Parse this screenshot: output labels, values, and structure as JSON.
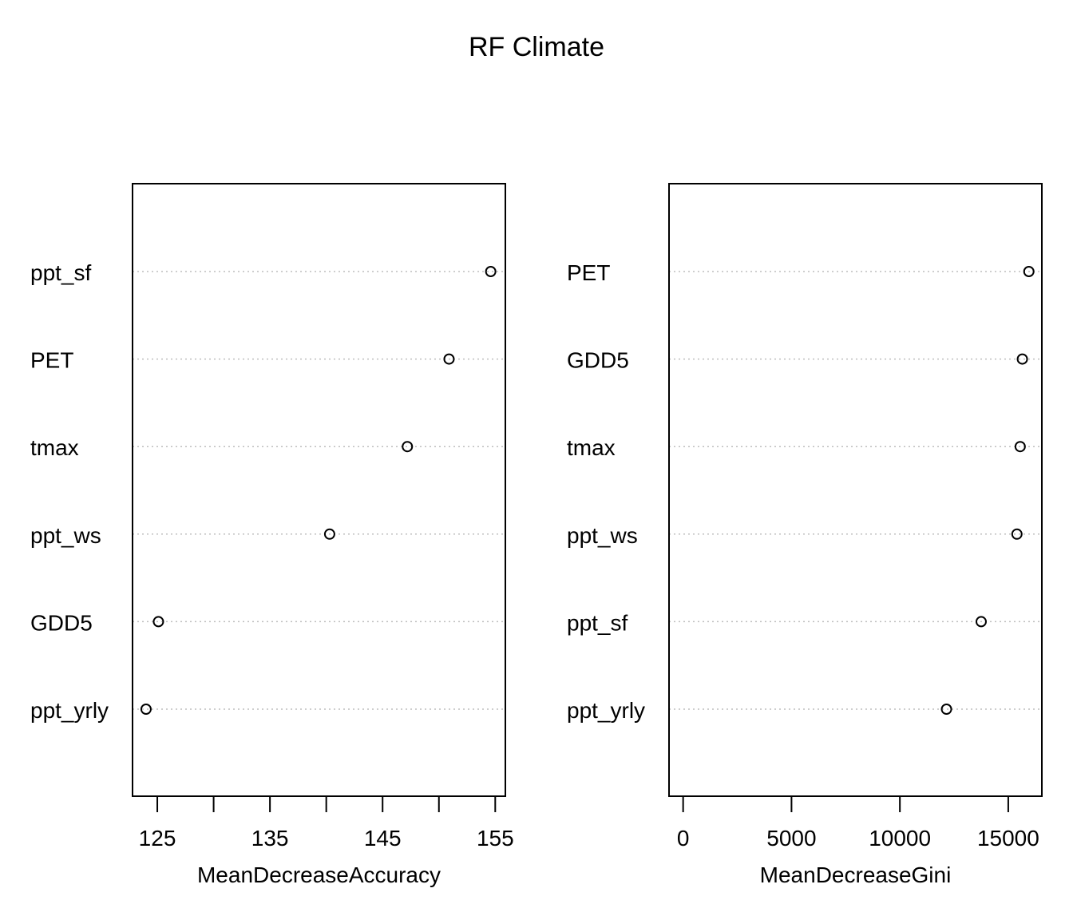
{
  "title": "RF Climate",
  "chart_data": [
    {
      "type": "scatter",
      "subtype": "dotchart",
      "xlabel": "MeanDecreaseAccuracy",
      "ylabel": "",
      "xlim": [
        122.8,
        155.9
      ],
      "xticks": [
        125,
        130,
        135,
        140,
        145,
        150,
        155
      ],
      "xticklabels": [
        "125",
        "",
        "135",
        "",
        "145",
        "",
        "155"
      ],
      "grid": "dotted horizontal",
      "categories": [
        "ppt_sf",
        "PET",
        "tmax",
        "ppt_ws",
        "GDD5",
        "ppt_yrly"
      ],
      "values": [
        154.6,
        150.9,
        147.2,
        140.3,
        125.1,
        124.0
      ]
    },
    {
      "type": "scatter",
      "subtype": "dotchart",
      "xlabel": "MeanDecreaseGini",
      "ylabel": "",
      "xlim": [
        -650,
        16550
      ],
      "xticks": [
        0,
        5000,
        10000,
        15000
      ],
      "xticklabels": [
        "0",
        "5000",
        "10000",
        "15000"
      ],
      "grid": "dotted horizontal",
      "categories": [
        "PET",
        "GDD5",
        "tmax",
        "ppt_ws",
        "ppt_sf",
        "ppt_yrly"
      ],
      "values": [
        15950,
        15650,
        15550,
        15400,
        13750,
        12150
      ]
    }
  ]
}
